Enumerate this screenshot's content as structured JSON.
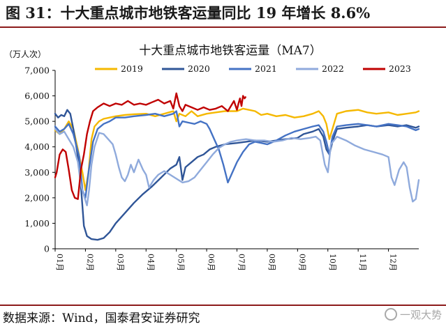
{
  "figure": {
    "title": "图 31：十大重点城市地铁客运量同比 19 年增长 8.6%",
    "source": "数据来源：Wind，国泰君安证券研究",
    "watermark": "一观大势"
  },
  "chart_data": {
    "type": "line",
    "title": "十大重点城市地铁客运量（MA7）",
    "ylabel": "（万人次）",
    "ylim": [
      0,
      7000
    ],
    "yticks": [
      0,
      1000,
      2000,
      3000,
      4000,
      5000,
      6000,
      7000
    ],
    "ytick_labels": [
      "0",
      "1,000",
      "2,000",
      "3,000",
      "4,000",
      "5,000",
      "6,000",
      "7,000"
    ],
    "xlim": [
      1,
      13
    ],
    "xticks": [
      1,
      2,
      3,
      4,
      5,
      6,
      7,
      8,
      9,
      10,
      11,
      12
    ],
    "xtick_labels": [
      "01月",
      "02月",
      "03月",
      "04月",
      "05月",
      "06月",
      "07月",
      "08月",
      "09月",
      "10月",
      "11月",
      "12月"
    ],
    "legend_position": "top",
    "grid": false,
    "series": [
      {
        "name": "2019",
        "color": "#f5b800",
        "points": [
          [
            1.0,
            4650
          ],
          [
            1.15,
            4500
          ],
          [
            1.3,
            4700
          ],
          [
            1.45,
            5000
          ],
          [
            1.6,
            4700
          ],
          [
            1.75,
            3900
          ],
          [
            1.9,
            3000
          ],
          [
            2.0,
            2300
          ],
          [
            2.1,
            3000
          ],
          [
            2.2,
            4300
          ],
          [
            2.3,
            4800
          ],
          [
            2.45,
            5000
          ],
          [
            2.6,
            5100
          ],
          [
            2.8,
            5150
          ],
          [
            3.0,
            5200
          ],
          [
            3.3,
            5250
          ],
          [
            3.6,
            5280
          ],
          [
            4.0,
            5300
          ],
          [
            4.3,
            5200
          ],
          [
            4.6,
            5300
          ],
          [
            4.9,
            5400
          ],
          [
            5.0,
            5000
          ],
          [
            5.1,
            5300
          ],
          [
            5.3,
            5200
          ],
          [
            5.5,
            5400
          ],
          [
            5.7,
            5200
          ],
          [
            6.0,
            5300
          ],
          [
            6.3,
            5350
          ],
          [
            6.6,
            5400
          ],
          [
            7.0,
            5400
          ],
          [
            7.2,
            5500
          ],
          [
            7.4,
            5450
          ],
          [
            7.6,
            5400
          ],
          [
            7.8,
            5250
          ],
          [
            8.0,
            5300
          ],
          [
            8.3,
            5200
          ],
          [
            8.6,
            5250
          ],
          [
            8.9,
            5150
          ],
          [
            9.2,
            5200
          ],
          [
            9.5,
            5300
          ],
          [
            9.7,
            5400
          ],
          [
            9.85,
            5200
          ],
          [
            9.95,
            4900
          ],
          [
            10.05,
            4300
          ],
          [
            10.15,
            4700
          ],
          [
            10.3,
            5300
          ],
          [
            10.6,
            5400
          ],
          [
            11.0,
            5450
          ],
          [
            11.3,
            5350
          ],
          [
            11.6,
            5300
          ],
          [
            12.0,
            5350
          ],
          [
            12.3,
            5250
          ],
          [
            12.6,
            5300
          ],
          [
            12.9,
            5350
          ],
          [
            13.0,
            5400
          ]
        ]
      },
      {
        "name": "2020",
        "color": "#2f5597",
        "points": [
          [
            1.0,
            5300
          ],
          [
            1.1,
            5150
          ],
          [
            1.2,
            5250
          ],
          [
            1.3,
            5200
          ],
          [
            1.4,
            5450
          ],
          [
            1.5,
            5300
          ],
          [
            1.6,
            4700
          ],
          [
            1.7,
            4000
          ],
          [
            1.8,
            3200
          ],
          [
            1.88,
            2000
          ],
          [
            1.95,
            900
          ],
          [
            2.05,
            500
          ],
          [
            2.2,
            380
          ],
          [
            2.4,
            350
          ],
          [
            2.6,
            420
          ],
          [
            2.8,
            650
          ],
          [
            3.0,
            1000
          ],
          [
            3.3,
            1400
          ],
          [
            3.6,
            1800
          ],
          [
            3.9,
            2150
          ],
          [
            4.2,
            2450
          ],
          [
            4.5,
            2800
          ],
          [
            4.8,
            3150
          ],
          [
            5.0,
            3300
          ],
          [
            5.1,
            3600
          ],
          [
            5.2,
            2700
          ],
          [
            5.3,
            3200
          ],
          [
            5.5,
            3400
          ],
          [
            5.7,
            3600
          ],
          [
            5.9,
            3700
          ],
          [
            6.1,
            3900
          ],
          [
            6.3,
            4000
          ],
          [
            6.6,
            4100
          ],
          [
            7.0,
            4150
          ],
          [
            7.3,
            4200
          ],
          [
            7.6,
            4250
          ],
          [
            8.0,
            4200
          ],
          [
            8.3,
            4250
          ],
          [
            8.6,
            4300
          ],
          [
            9.0,
            4350
          ],
          [
            9.2,
            4500
          ],
          [
            9.5,
            4600
          ],
          [
            9.7,
            4700
          ],
          [
            9.85,
            4400
          ],
          [
            9.95,
            3900
          ],
          [
            10.05,
            3700
          ],
          [
            10.15,
            4200
          ],
          [
            10.3,
            4700
          ],
          [
            10.6,
            4750
          ],
          [
            11.0,
            4800
          ],
          [
            11.3,
            4850
          ],
          [
            11.6,
            4800
          ],
          [
            12.0,
            4850
          ],
          [
            12.3,
            4800
          ],
          [
            12.6,
            4850
          ],
          [
            12.9,
            4750
          ],
          [
            13.0,
            4800
          ]
        ]
      },
      {
        "name": "2021",
        "color": "#4472c4",
        "points": [
          [
            1.0,
            4800
          ],
          [
            1.15,
            4600
          ],
          [
            1.3,
            4700
          ],
          [
            1.45,
            4900
          ],
          [
            1.6,
            4500
          ],
          [
            1.8,
            3600
          ],
          [
            1.9,
            2300
          ],
          [
            2.0,
            2000
          ],
          [
            2.1,
            3000
          ],
          [
            2.25,
            4200
          ],
          [
            2.4,
            4700
          ],
          [
            2.6,
            4900
          ],
          [
            2.8,
            5000
          ],
          [
            3.0,
            5150
          ],
          [
            3.3,
            5150
          ],
          [
            3.6,
            5200
          ],
          [
            4.0,
            5250
          ],
          [
            4.3,
            5300
          ],
          [
            4.6,
            5200
          ],
          [
            4.9,
            5300
          ],
          [
            5.0,
            5400
          ],
          [
            5.1,
            4800
          ],
          [
            5.2,
            5000
          ],
          [
            5.4,
            4950
          ],
          [
            5.6,
            4900
          ],
          [
            5.8,
            5000
          ],
          [
            6.0,
            4900
          ],
          [
            6.1,
            4700
          ],
          [
            6.25,
            4300
          ],
          [
            6.4,
            3900
          ],
          [
            6.55,
            3300
          ],
          [
            6.7,
            2600
          ],
          [
            6.85,
            3000
          ],
          [
            7.0,
            3400
          ],
          [
            7.2,
            3800
          ],
          [
            7.4,
            4100
          ],
          [
            7.6,
            4200
          ],
          [
            7.8,
            4150
          ],
          [
            8.0,
            4100
          ],
          [
            8.3,
            4250
          ],
          [
            8.6,
            4450
          ],
          [
            8.9,
            4600
          ],
          [
            9.2,
            4700
          ],
          [
            9.5,
            4800
          ],
          [
            9.7,
            4850
          ],
          [
            9.85,
            4600
          ],
          [
            9.95,
            4200
          ],
          [
            10.05,
            3700
          ],
          [
            10.15,
            4400
          ],
          [
            10.3,
            4800
          ],
          [
            10.6,
            4850
          ],
          [
            11.0,
            4900
          ],
          [
            11.3,
            4850
          ],
          [
            11.6,
            4800
          ],
          [
            12.0,
            4900
          ],
          [
            12.3,
            4850
          ],
          [
            12.6,
            4800
          ],
          [
            12.9,
            4650
          ],
          [
            13.0,
            4700
          ]
        ]
      },
      {
        "name": "2022",
        "color": "#8faadc",
        "points": [
          [
            1.0,
            4700
          ],
          [
            1.15,
            4500
          ],
          [
            1.3,
            4600
          ],
          [
            1.45,
            4300
          ],
          [
            1.6,
            4000
          ],
          [
            1.75,
            3400
          ],
          [
            1.85,
            2500
          ],
          [
            1.95,
            2100
          ],
          [
            2.05,
            1700
          ],
          [
            2.12,
            2300
          ],
          [
            2.2,
            3300
          ],
          [
            2.3,
            4000
          ],
          [
            2.45,
            4550
          ],
          [
            2.6,
            4500
          ],
          [
            2.75,
            4300
          ],
          [
            2.9,
            4100
          ],
          [
            3.0,
            3700
          ],
          [
            3.1,
            3200
          ],
          [
            3.2,
            2800
          ],
          [
            3.3,
            2650
          ],
          [
            3.4,
            2900
          ],
          [
            3.5,
            3300
          ],
          [
            3.6,
            3000
          ],
          [
            3.75,
            3500
          ],
          [
            3.9,
            3100
          ],
          [
            4.0,
            2900
          ],
          [
            4.1,
            2400
          ],
          [
            4.25,
            2700
          ],
          [
            4.4,
            2900
          ],
          [
            4.6,
            3050
          ],
          [
            4.8,
            2900
          ],
          [
            5.0,
            2750
          ],
          [
            5.2,
            2600
          ],
          [
            5.4,
            2650
          ],
          [
            5.6,
            2800
          ],
          [
            5.8,
            3100
          ],
          [
            6.0,
            3400
          ],
          [
            6.2,
            3700
          ],
          [
            6.4,
            3950
          ],
          [
            6.6,
            4100
          ],
          [
            6.8,
            4200
          ],
          [
            7.0,
            4250
          ],
          [
            7.3,
            4300
          ],
          [
            7.6,
            4250
          ],
          [
            7.9,
            4250
          ],
          [
            8.2,
            4200
          ],
          [
            8.5,
            4250
          ],
          [
            8.8,
            4350
          ],
          [
            9.1,
            4300
          ],
          [
            9.4,
            4350
          ],
          [
            9.6,
            4400
          ],
          [
            9.75,
            4250
          ],
          [
            9.9,
            3300
          ],
          [
            10.0,
            3000
          ],
          [
            10.1,
            4100
          ],
          [
            10.3,
            4400
          ],
          [
            10.6,
            4250
          ],
          [
            10.9,
            4050
          ],
          [
            11.2,
            3900
          ],
          [
            11.5,
            3800
          ],
          [
            11.8,
            3700
          ],
          [
            12.0,
            3600
          ],
          [
            12.1,
            2800
          ],
          [
            12.2,
            2500
          ],
          [
            12.35,
            3100
          ],
          [
            12.5,
            3400
          ],
          [
            12.6,
            3200
          ],
          [
            12.7,
            2400
          ],
          [
            12.8,
            1850
          ],
          [
            12.9,
            1950
          ],
          [
            13.0,
            2700
          ]
        ]
      },
      {
        "name": "2023",
        "color": "#c00000",
        "points": [
          [
            1.0,
            2800
          ],
          [
            1.05,
            3000
          ],
          [
            1.15,
            3700
          ],
          [
            1.25,
            3900
          ],
          [
            1.35,
            3800
          ],
          [
            1.45,
            3100
          ],
          [
            1.55,
            2300
          ],
          [
            1.65,
            2000
          ],
          [
            1.75,
            1950
          ],
          [
            1.85,
            3100
          ],
          [
            1.95,
            3700
          ],
          [
            2.05,
            4500
          ],
          [
            2.15,
            5000
          ],
          [
            2.25,
            5400
          ],
          [
            2.4,
            5550
          ],
          [
            2.6,
            5700
          ],
          [
            2.8,
            5600
          ],
          [
            3.0,
            5700
          ],
          [
            3.2,
            5650
          ],
          [
            3.4,
            5800
          ],
          [
            3.6,
            5650
          ],
          [
            3.8,
            5700
          ],
          [
            4.0,
            5650
          ],
          [
            4.2,
            5750
          ],
          [
            4.4,
            5850
          ],
          [
            4.6,
            5700
          ],
          [
            4.8,
            5800
          ],
          [
            4.9,
            5500
          ],
          [
            5.0,
            6100
          ],
          [
            5.1,
            5600
          ],
          [
            5.2,
            5400
          ],
          [
            5.3,
            5650
          ],
          [
            5.5,
            5550
          ],
          [
            5.7,
            5450
          ],
          [
            5.9,
            5550
          ],
          [
            6.1,
            5450
          ],
          [
            6.3,
            5500
          ],
          [
            6.5,
            5600
          ],
          [
            6.7,
            5400
          ],
          [
            6.9,
            5800
          ],
          [
            7.0,
            5450
          ],
          [
            7.05,
            5700
          ],
          [
            7.1,
            5900
          ],
          [
            7.15,
            5600
          ],
          [
            7.2,
            6000
          ],
          [
            7.25,
            5900
          ],
          [
            7.28,
            5950
          ]
        ]
      }
    ]
  }
}
